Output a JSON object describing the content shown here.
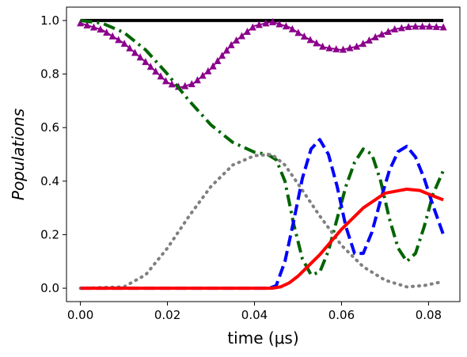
{
  "chart_data": {
    "type": "line",
    "xlabel": "time (μs)",
    "ylabel": "Populations",
    "xlim": [
      -0.0032,
      0.0872
    ],
    "ylim": [
      -0.05,
      1.05
    ],
    "xticks": [
      0.0,
      0.02,
      0.04,
      0.06,
      0.08
    ],
    "xtick_labels": [
      "0.00",
      "0.02",
      "0.04",
      "0.06",
      "0.08"
    ],
    "yticks": [
      0.0,
      0.2,
      0.4,
      0.6,
      0.8,
      1.0
    ],
    "ytick_labels": [
      "0.0",
      "0.2",
      "0.4",
      "0.6",
      "0.8",
      "1.0"
    ],
    "grid": false,
    "legend": "none",
    "series": [
      {
        "style": "solid",
        "color": "#000000",
        "points": [
          [
            0.0,
            1.0
          ],
          [
            0.0834,
            1.0
          ]
        ]
      },
      {
        "style": "solid-triangle-markers",
        "color": "#8b008b",
        "points": [
          [
            0.0,
            0.99
          ],
          [
            0.005,
            0.965
          ],
          [
            0.01,
            0.915
          ],
          [
            0.015,
            0.845
          ],
          [
            0.02,
            0.768
          ],
          [
            0.023,
            0.75
          ],
          [
            0.026,
            0.765
          ],
          [
            0.03,
            0.82
          ],
          [
            0.035,
            0.915
          ],
          [
            0.04,
            0.98
          ],
          [
            0.044,
            0.995
          ],
          [
            0.048,
            0.975
          ],
          [
            0.052,
            0.935
          ],
          [
            0.056,
            0.9
          ],
          [
            0.06,
            0.89
          ],
          [
            0.064,
            0.905
          ],
          [
            0.068,
            0.94
          ],
          [
            0.072,
            0.967
          ],
          [
            0.076,
            0.978
          ],
          [
            0.08,
            0.978
          ],
          [
            0.0834,
            0.975
          ]
        ]
      },
      {
        "style": "dashdot",
        "color": "#006400",
        "points": [
          [
            0.0,
            1.0
          ],
          [
            0.005,
            0.99
          ],
          [
            0.01,
            0.955
          ],
          [
            0.015,
            0.89
          ],
          [
            0.02,
            0.8
          ],
          [
            0.025,
            0.7
          ],
          [
            0.03,
            0.61
          ],
          [
            0.035,
            0.545
          ],
          [
            0.04,
            0.508
          ],
          [
            0.043,
            0.5
          ],
          [
            0.045,
            0.48
          ],
          [
            0.047,
            0.4
          ],
          [
            0.049,
            0.24
          ],
          [
            0.051,
            0.11
          ],
          [
            0.053,
            0.05
          ],
          [
            0.055,
            0.06
          ],
          [
            0.057,
            0.14
          ],
          [
            0.059,
            0.26
          ],
          [
            0.061,
            0.38
          ],
          [
            0.063,
            0.47
          ],
          [
            0.065,
            0.52
          ],
          [
            0.067,
            0.5
          ],
          [
            0.069,
            0.4
          ],
          [
            0.071,
            0.26
          ],
          [
            0.073,
            0.15
          ],
          [
            0.075,
            0.1
          ],
          [
            0.077,
            0.13
          ],
          [
            0.079,
            0.23
          ],
          [
            0.081,
            0.35
          ],
          [
            0.0834,
            0.44
          ]
        ]
      },
      {
        "style": "dotted",
        "color": "#808080",
        "points": [
          [
            0.0,
            0.0
          ],
          [
            0.01,
            0.005
          ],
          [
            0.015,
            0.05
          ],
          [
            0.02,
            0.15
          ],
          [
            0.025,
            0.27
          ],
          [
            0.03,
            0.38
          ],
          [
            0.035,
            0.46
          ],
          [
            0.04,
            0.495
          ],
          [
            0.044,
            0.5
          ],
          [
            0.047,
            0.46
          ],
          [
            0.05,
            0.39
          ],
          [
            0.055,
            0.27
          ],
          [
            0.06,
            0.16
          ],
          [
            0.065,
            0.08
          ],
          [
            0.07,
            0.03
          ],
          [
            0.075,
            0.005
          ],
          [
            0.079,
            0.01
          ],
          [
            0.0834,
            0.025
          ]
        ]
      },
      {
        "style": "dashed",
        "color": "#0000ff",
        "points": [
          [
            0.0,
            0.0
          ],
          [
            0.0435,
            0.0
          ],
          [
            0.045,
            0.01
          ],
          [
            0.047,
            0.1
          ],
          [
            0.049,
            0.25
          ],
          [
            0.051,
            0.41
          ],
          [
            0.053,
            0.52
          ],
          [
            0.055,
            0.555
          ],
          [
            0.057,
            0.5
          ],
          [
            0.059,
            0.38
          ],
          [
            0.061,
            0.23
          ],
          [
            0.063,
            0.13
          ],
          [
            0.065,
            0.13
          ],
          [
            0.067,
            0.21
          ],
          [
            0.069,
            0.33
          ],
          [
            0.071,
            0.44
          ],
          [
            0.073,
            0.51
          ],
          [
            0.075,
            0.53
          ],
          [
            0.077,
            0.49
          ],
          [
            0.079,
            0.41
          ],
          [
            0.081,
            0.31
          ],
          [
            0.0834,
            0.2
          ]
        ]
      },
      {
        "style": "solid",
        "color": "#ff0000",
        "points": [
          [
            0.0,
            0.0
          ],
          [
            0.044,
            0.0
          ],
          [
            0.046,
            0.005
          ],
          [
            0.048,
            0.02
          ],
          [
            0.05,
            0.045
          ],
          [
            0.055,
            0.125
          ],
          [
            0.06,
            0.22
          ],
          [
            0.065,
            0.3
          ],
          [
            0.07,
            0.355
          ],
          [
            0.075,
            0.37
          ],
          [
            0.078,
            0.365
          ],
          [
            0.081,
            0.345
          ],
          [
            0.0834,
            0.33
          ]
        ]
      }
    ]
  }
}
